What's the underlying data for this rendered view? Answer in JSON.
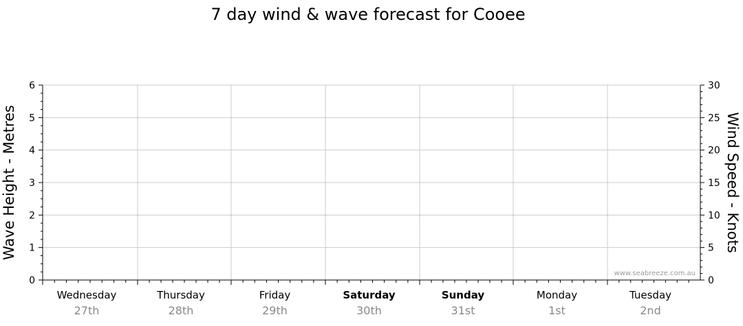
{
  "chart_data": {
    "type": "line",
    "title": "7 day wind & wave forecast for Cooee",
    "ylabel_left": "Wave Height - Metres",
    "ylabel_right": "Wind Speed - Knots",
    "ylim_left": [
      0,
      6
    ],
    "ylim_right": [
      0,
      30
    ],
    "y_ticks_left": [
      "0",
      "1",
      "2",
      "3",
      "4",
      "5",
      "6"
    ],
    "y_ticks_right": [
      "0",
      "5",
      "10",
      "15",
      "20",
      "25",
      "30"
    ],
    "grid": true,
    "days": [
      {
        "name": "Wednesday",
        "date": "27th",
        "bold": false
      },
      {
        "name": "Thursday",
        "date": "28th",
        "bold": false
      },
      {
        "name": "Friday",
        "date": "29th",
        "bold": false
      },
      {
        "name": "Saturday",
        "date": "30th",
        "bold": true
      },
      {
        "name": "Sunday",
        "date": "31st",
        "bold": true
      },
      {
        "name": "Monday",
        "date": "1st",
        "bold": false
      },
      {
        "name": "Tuesday",
        "date": "2nd",
        "bold": false
      }
    ],
    "series": []
  },
  "watermark": "www.seabreeze.com.au"
}
